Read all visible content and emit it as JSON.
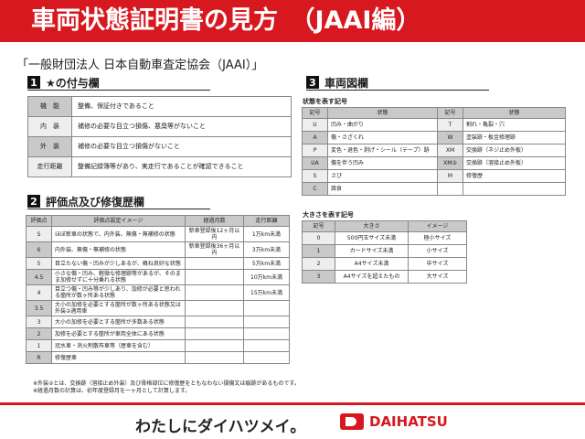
{
  "title": "車両状態証明書の見方　（JAAI編）",
  "organization": "「一般財団法人 日本自動車査定協会（JAAI）」",
  "section1": {
    "num": "1",
    "title": "★の付与欄",
    "rows": [
      [
        "機　能",
        "整備、保証付きであること"
      ],
      [
        "内　装",
        "補修の必要な目立つ損傷、悪臭等がないこと"
      ],
      [
        "外　装",
        "補修の必要な目立つ損傷がないこと"
      ],
      [
        "走行距離",
        "整備記録簿等があり、実走行であることが確認できること"
      ]
    ]
  },
  "section2": {
    "num": "2",
    "title": "評価点及び修復歴欄",
    "headers": [
      "評価点",
      "評価点設定イメージ",
      "経過月数",
      "走行距離"
    ],
    "rows": [
      [
        "S",
        "ほぼ新車の状態で、内外装、無傷・無補修の状態",
        "新車登録後12ヶ月以内",
        "1万km未満"
      ],
      [
        "6",
        "内外装、無傷・無補修の状態",
        "新車登録後36ヶ月以内",
        "3万km未満"
      ],
      [
        "5",
        "目立たない傷・凹みが少しあるが、概ね良好な状態",
        "",
        "5万km未満"
      ],
      [
        "4.5",
        "小さな傷・凹み、軽微な修理跡等があるが、そのまま加修せずに十分乗れる状態",
        "",
        "10万km未満"
      ],
      [
        "4",
        "目立つ傷・凹み等が少しあり、加修が必要と思われる箇所が数ヶ所ある状態",
        "",
        "15万km未満"
      ],
      [
        "3.5",
        "大小の加修を必要とする箇所が数ヶ所ある状態又は外装②適用車",
        "",
        ""
      ],
      [
        "3",
        "大小の加修を必要とする箇所が多数ある状態",
        "",
        ""
      ],
      [
        "2",
        "加修を必要とする箇所が車両全体にある状態",
        "",
        ""
      ],
      [
        "1",
        "冠水車・消火剤散布車等（歴車を含む）",
        "",
        ""
      ],
      [
        "R",
        "修復歴車",
        "",
        ""
      ]
    ]
  },
  "section3": {
    "num": "3",
    "title": "車両図欄",
    "state_title": "状態を表す記号",
    "state_headers": [
      "記号",
      "状態",
      "記号",
      "状態"
    ],
    "state_rows": [
      [
        "U",
        "凹み・曲がり",
        "T",
        "割れ・亀裂・穴"
      ],
      [
        "A",
        "傷・さざくれ",
        "W",
        "塗装跡・板金修理跡"
      ],
      [
        "P",
        "変色・退色・剥げ・シール（テープ）跡",
        "XM",
        "交換跡（ネジ止め外板）"
      ],
      [
        "UA",
        "傷を伴う凹み",
        "XM②",
        "交換跡（溶接止め外板）"
      ],
      [
        "S",
        "さび",
        "M",
        "修復歴"
      ],
      [
        "C",
        "腐食",
        "",
        ""
      ]
    ],
    "size_title": "大きさを表す記号",
    "size_headers": [
      "記号",
      "大きさ",
      "イメージ"
    ],
    "size_rows": [
      [
        "0",
        "500円玉サイズ未満",
        "極小サイズ"
      ],
      [
        "1",
        "カードサイズ未満",
        "小サイズ"
      ],
      [
        "2",
        "A4サイズ未満",
        "中サイズ"
      ],
      [
        "3",
        "A4サイズを超えたもの",
        "大サイズ"
      ]
    ]
  },
  "footnotes": [
    "※外装②とは、交換跡（溶接止め外装）及び骨格部位に修復歴をともなわない損傷又は痕跡があるものです。",
    "※経過月数の計算は、初年度登録月を一ヶ月として計算します。"
  ],
  "slogan": "わたしにダイハツメイ。",
  "brand": "DAIHATSU",
  "colors": {
    "accent": "#d7181f"
  }
}
